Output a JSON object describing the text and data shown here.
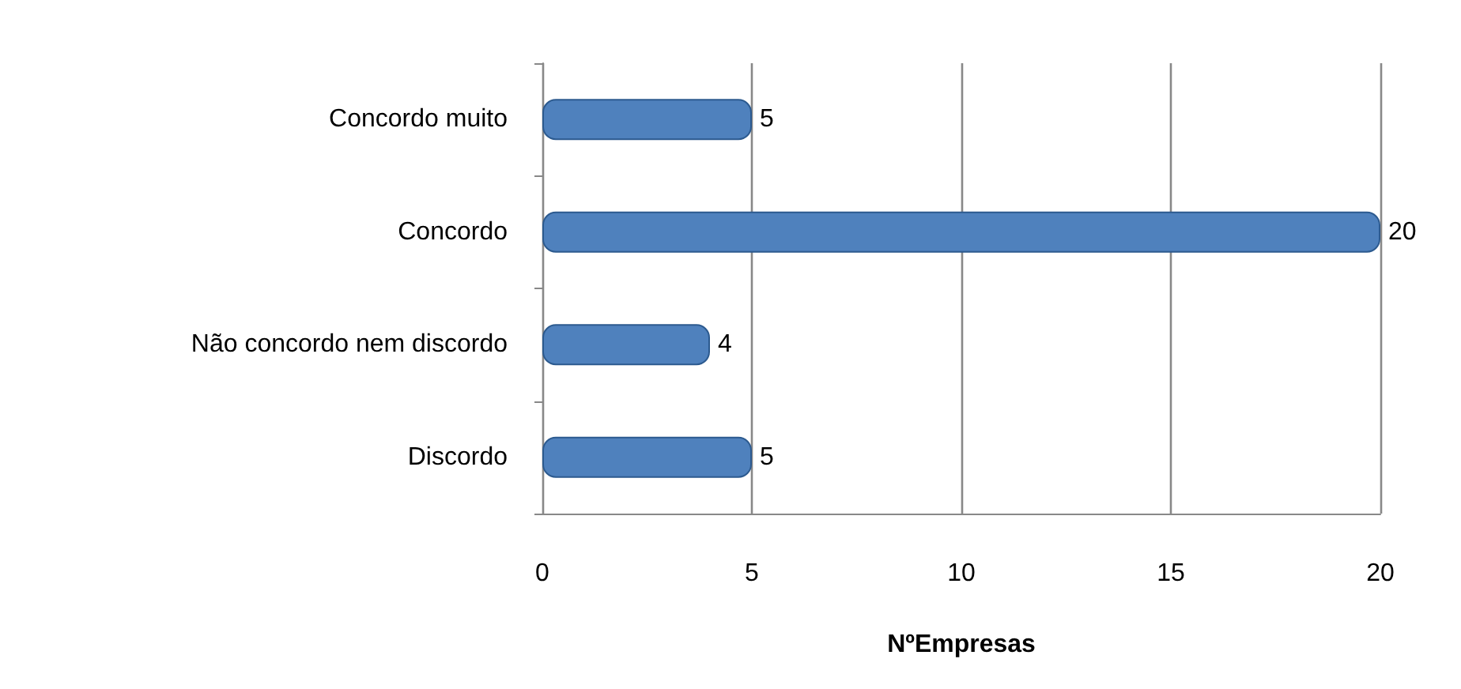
{
  "chart_data": {
    "type": "bar",
    "orientation": "horizontal",
    "categories": [
      "Concordo muito",
      "Concordo",
      "Não concordo nem discordo",
      "Discordo"
    ],
    "values": [
      5,
      20,
      4,
      5
    ],
    "color": "#4f81bd",
    "xlim": [
      0,
      20
    ],
    "xticks": [
      0,
      5,
      10,
      15,
      20
    ],
    "xlabel": "NºEmpresas",
    "grid": "x",
    "data_labels": true
  }
}
